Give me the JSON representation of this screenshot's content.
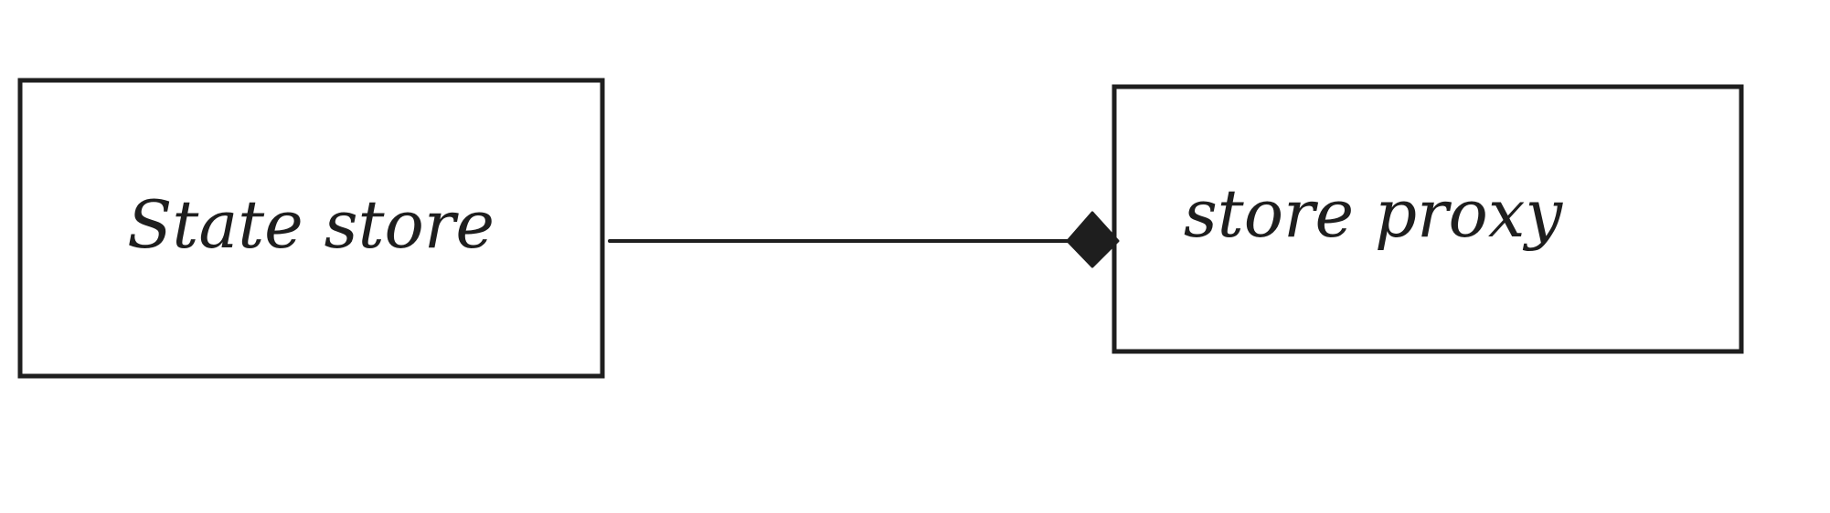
{
  "diagram": {
    "stroke_color": "#1e1e1e",
    "background_color": "#ffffff",
    "nodes": [
      {
        "id": "state-store",
        "label": "State store"
      },
      {
        "id": "store-proxy",
        "label": "store proxy"
      }
    ],
    "edges": [
      {
        "from": "state-store",
        "to": "store-proxy",
        "arrowhead": "diamond"
      }
    ]
  }
}
